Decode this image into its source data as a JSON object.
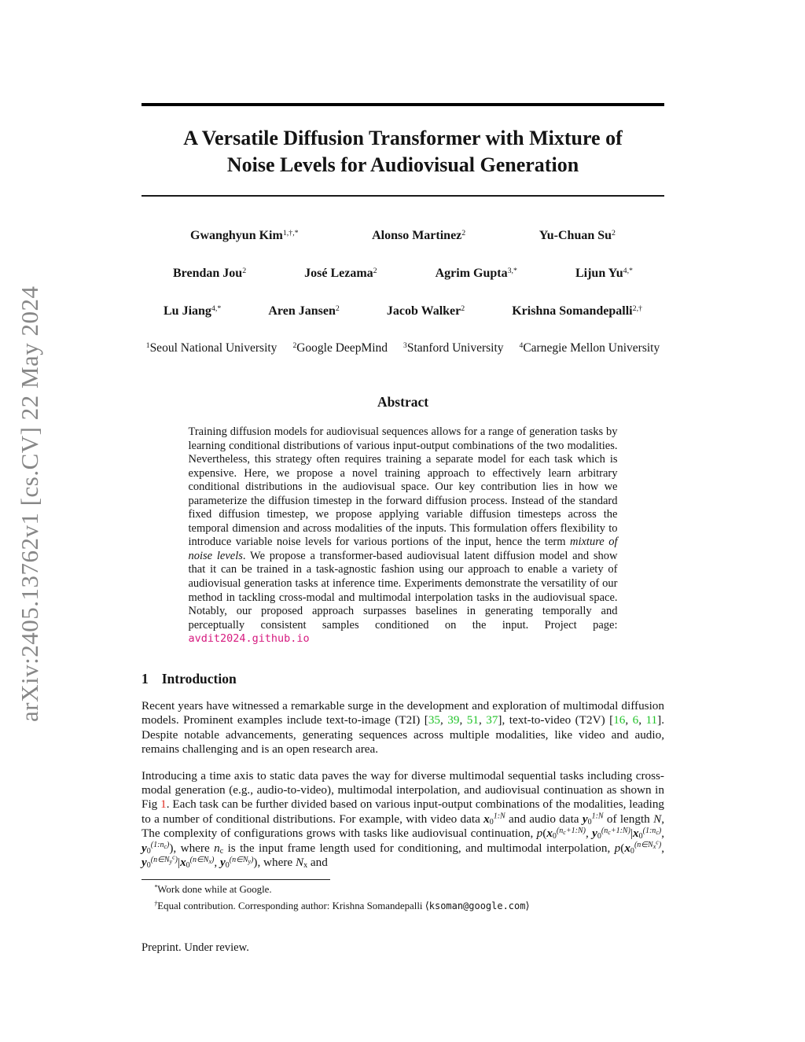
{
  "colors": {
    "citation-green": "#22c32a",
    "figref-red": "#e02b20",
    "link-magenta": "#d61a7f",
    "watermark-gray": "#878787"
  },
  "sidebar": {
    "text": "arXiv:2405.13762v1  [cs.CV]  22 May 2024"
  },
  "header": {
    "title_line1": "A Versatile Diffusion Transformer with Mixture of",
    "title_line2": "Noise Levels for Audiovisual Generation"
  },
  "authors": {
    "rows": [
      [
        {
          "name": "Gwanghyun Kim",
          "sup": "1,†,*"
        },
        {
          "name": "Alonso Martinez",
          "sup": "2"
        },
        {
          "name": "Yu-Chuan Su",
          "sup": "2"
        }
      ],
      [
        {
          "name": "Brendan Jou",
          "sup": "2"
        },
        {
          "name": "José Lezama",
          "sup": "2"
        },
        {
          "name": "Agrim Gupta",
          "sup": "3,*"
        },
        {
          "name": "Lijun Yu",
          "sup": "4,*"
        }
      ],
      [
        {
          "name": "Lu Jiang",
          "sup": "4,*"
        },
        {
          "name": "Aren Jansen",
          "sup": "2"
        },
        {
          "name": "Jacob Walker",
          "sup": "2"
        },
        {
          "name": "Krishna Somandepalli",
          "sup": "2,†"
        }
      ]
    ]
  },
  "affiliations": [
    {
      "sup": "1",
      "name": "Seoul National University"
    },
    {
      "sup": "2",
      "name": "Google DeepMind"
    },
    {
      "sup": "3",
      "name": "Stanford University"
    },
    {
      "sup": "4",
      "name": "Carnegie Mellon University"
    }
  ],
  "abstract": {
    "heading": "Abstract",
    "segments": [
      {
        "t": "Training diffusion models for audiovisual sequences allows for a range of generation tasks by learning conditional distributions of various input-output combinations of the two modalities. Nevertheless, this strategy often requires training a separate model for each task which is expensive. Here, we propose a novel training approach to effectively learn arbitrary conditional distributions in the audiovisual space. Our key contribution lies in how we parameterize the diffusion timestep in the forward diffusion process. Instead of the standard fixed diffusion timestep, we propose applying variable diffusion timesteps across the temporal dimension and across modalities of the inputs. This formulation offers flexibility to introduce variable noise levels for various portions of the input, hence the term "
      },
      {
        "t": "mixture of noise levels",
        "s": "i"
      },
      {
        "t": ". We propose a transformer-based audiovisual latent diffusion model and show that it can be trained in a task-agnostic fashion using our approach to enable a variety of audiovisual generation tasks at inference time. Experiments demonstrate the versatility of our method in tackling cross-modal and multimodal interpolation tasks in the audiovisual space. Notably, our proposed approach surpasses baselines in generating temporally and perceptually consistent samples conditioned on the input. Project page: "
      },
      {
        "t": "avdit2024.github.io",
        "s": "link"
      }
    ]
  },
  "introduction": {
    "number": "1",
    "heading": "Introduction",
    "para1": [
      {
        "t": "Recent years have witnessed a remarkable surge in the development and exploration of multimodal diffusion models. Prominent examples include text-to-image (T2I) ["
      },
      {
        "t": "35",
        "s": "cite"
      },
      {
        "t": ", "
      },
      {
        "t": "39",
        "s": "cite"
      },
      {
        "t": ", "
      },
      {
        "t": "51",
        "s": "cite"
      },
      {
        "t": ", "
      },
      {
        "t": "37",
        "s": "cite"
      },
      {
        "t": "], text-to-video (T2V) ["
      },
      {
        "t": "16",
        "s": "cite"
      },
      {
        "t": ", "
      },
      {
        "t": "6",
        "s": "cite"
      },
      {
        "t": ", "
      },
      {
        "t": "11",
        "s": "cite"
      },
      {
        "t": "]. Despite notable advancements, generating sequences across multiple modalities, like video and audio, remains challenging and is an open research area."
      }
    ],
    "para2": [
      {
        "t": "Introducing a time axis to static data paves the way for diverse multimodal sequential tasks including cross-modal generation (e.g., audio-to-video), multimodal interpolation, and audiovisual continuation as shown in Fig "
      },
      {
        "t": "1",
        "s": "figref"
      },
      {
        "t": ". Each task can be further divided based on various input-output combinations of the modalities, leading to a number of conditional distributions. For example, with video data "
      },
      {
        "t": "x",
        "s": "bi"
      },
      {
        "t": "0",
        "s": "sub"
      },
      {
        "s": "sup",
        "c": [
          {
            "t": "1:"
          },
          {
            "t": "N",
            "s": "i"
          }
        ]
      },
      {
        "t": " and audio data "
      },
      {
        "t": "y",
        "s": "bi"
      },
      {
        "t": "0",
        "s": "sub"
      },
      {
        "s": "sup",
        "c": [
          {
            "t": "1:"
          },
          {
            "t": "N",
            "s": "i"
          }
        ]
      },
      {
        "t": " of length "
      },
      {
        "t": "N",
        "s": "i"
      },
      {
        "t": ", The complexity of configurations grows with tasks like audiovisual continuation, "
      },
      {
        "t": "p",
        "s": "i"
      },
      {
        "t": "("
      },
      {
        "t": "x",
        "s": "bi"
      },
      {
        "t": "0",
        "s": "sub"
      },
      {
        "s": "sup",
        "c": [
          {
            "t": "("
          },
          {
            "t": "n",
            "s": "i"
          },
          {
            "t": "c",
            "s": "sub"
          },
          {
            "t": "+1:"
          },
          {
            "t": "N",
            "s": "i"
          },
          {
            "t": ")"
          }
        ]
      },
      {
        "t": ", "
      },
      {
        "t": "y",
        "s": "bi"
      },
      {
        "t": "0",
        "s": "sub"
      },
      {
        "s": "sup",
        "c": [
          {
            "t": "("
          },
          {
            "t": "n",
            "s": "i"
          },
          {
            "t": "c",
            "s": "sub"
          },
          {
            "t": "+1:"
          },
          {
            "t": "N",
            "s": "i"
          },
          {
            "t": ")"
          }
        ]
      },
      {
        "t": "|"
      },
      {
        "t": "x",
        "s": "bi"
      },
      {
        "t": "0",
        "s": "sub"
      },
      {
        "s": "sup",
        "c": [
          {
            "t": "(1:"
          },
          {
            "t": "n",
            "s": "i"
          },
          {
            "t": "c",
            "s": "sub"
          },
          {
            "t": ")"
          }
        ]
      },
      {
        "t": ", "
      },
      {
        "t": "y",
        "s": "bi"
      },
      {
        "t": "0",
        "s": "sub"
      },
      {
        "s": "sup",
        "c": [
          {
            "t": "(1:"
          },
          {
            "t": "n",
            "s": "i"
          },
          {
            "t": "c",
            "s": "sub"
          },
          {
            "t": ")"
          }
        ]
      },
      {
        "t": "), where "
      },
      {
        "t": "n",
        "s": "i"
      },
      {
        "t": "c",
        "s": "sub"
      },
      {
        "t": " is the input frame length used for conditioning, and multimodal interpolation, "
      },
      {
        "t": "p",
        "s": "i"
      },
      {
        "t": "("
      },
      {
        "t": "x",
        "s": "bi"
      },
      {
        "t": "0",
        "s": "sub"
      },
      {
        "s": "sup",
        "c": [
          {
            "t": "("
          },
          {
            "t": "n",
            "s": "i"
          },
          {
            "t": "∈"
          },
          {
            "t": "N",
            "s": "i"
          },
          {
            "t": "x",
            "s": "sub"
          },
          {
            "t": "c",
            "s": "sup"
          },
          {
            "t": ")"
          }
        ]
      },
      {
        "t": ", "
      },
      {
        "t": "y",
        "s": "bi"
      },
      {
        "t": "0",
        "s": "sub"
      },
      {
        "s": "sup",
        "c": [
          {
            "t": "("
          },
          {
            "t": "n",
            "s": "i"
          },
          {
            "t": "∈"
          },
          {
            "t": "N",
            "s": "i"
          },
          {
            "t": "y",
            "s": "sub"
          },
          {
            "t": "c",
            "s": "sup"
          },
          {
            "t": ")"
          }
        ]
      },
      {
        "t": "|"
      },
      {
        "t": "x",
        "s": "bi"
      },
      {
        "t": "0",
        "s": "sub"
      },
      {
        "s": "sup",
        "c": [
          {
            "t": "("
          },
          {
            "t": "n",
            "s": "i"
          },
          {
            "t": "∈"
          },
          {
            "t": "N",
            "s": "i"
          },
          {
            "t": "x",
            "s": "sub"
          },
          {
            "t": ")"
          }
        ]
      },
      {
        "t": ", "
      },
      {
        "t": "y",
        "s": "bi"
      },
      {
        "t": "0",
        "s": "sub"
      },
      {
        "s": "sup",
        "c": [
          {
            "t": "("
          },
          {
            "t": "n",
            "s": "i"
          },
          {
            "t": "∈"
          },
          {
            "t": "N",
            "s": "i"
          },
          {
            "t": "y",
            "s": "sub"
          },
          {
            "t": ")"
          }
        ]
      },
      {
        "t": "), where "
      },
      {
        "t": "N",
        "s": "i"
      },
      {
        "t": "x",
        "s": "sub"
      },
      {
        "t": " and"
      }
    ]
  },
  "footnotes": [
    [
      {
        "t": "*",
        "s": "sup"
      },
      {
        "t": "Work done while at Google."
      }
    ],
    [
      {
        "t": "†",
        "s": "sup"
      },
      {
        "t": "Equal contribution. Corresponding author: Krishna Somandepalli "
      },
      {
        "t": "⟨"
      },
      {
        "t": "ksoman@google.com",
        "s": "mono"
      },
      {
        "t": "⟩"
      }
    ]
  ],
  "footer": {
    "text": "Preprint. Under review."
  }
}
